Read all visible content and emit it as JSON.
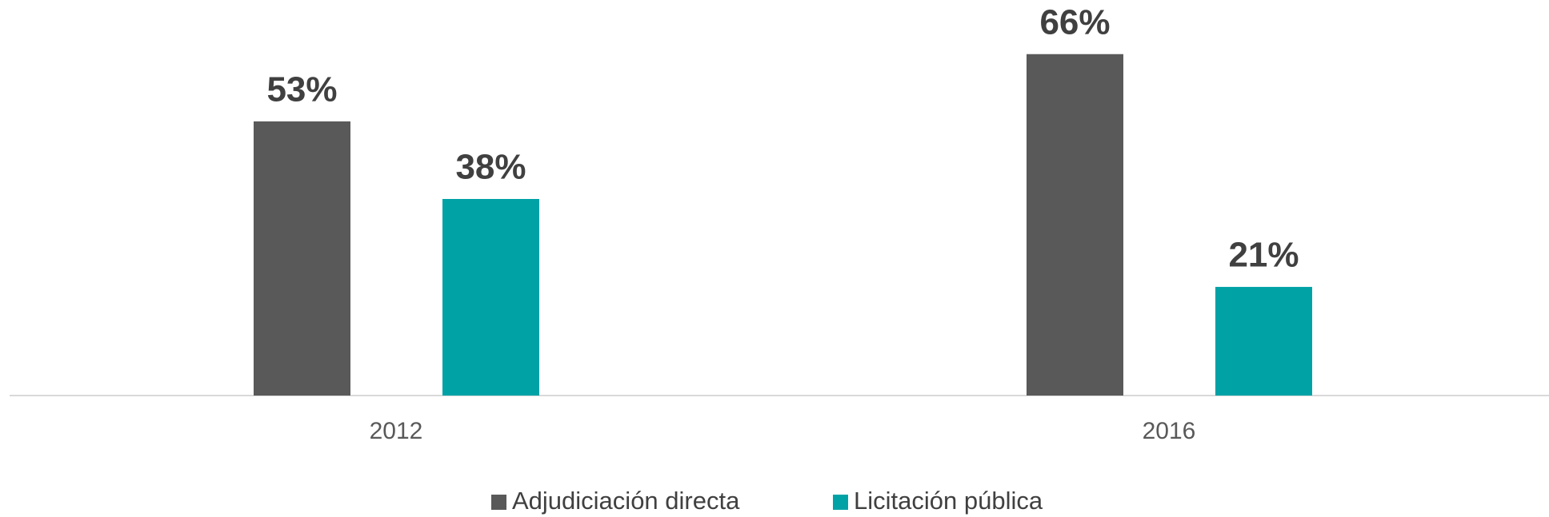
{
  "chart_data": {
    "type": "bar",
    "categories": [
      "2012",
      "2016"
    ],
    "series": [
      {
        "name": "Adjudiciación directa",
        "color": "#595959",
        "values": [
          53,
          66
        ],
        "value_labels": [
          "53%",
          "66%"
        ]
      },
      {
        "name": "Licitación pública",
        "color": "#00a2a6",
        "values": [
          38,
          21
        ],
        "value_labels": [
          "38%",
          "21%"
        ]
      }
    ],
    "ylim": [
      0,
      76
    ],
    "legend": "bottom"
  }
}
